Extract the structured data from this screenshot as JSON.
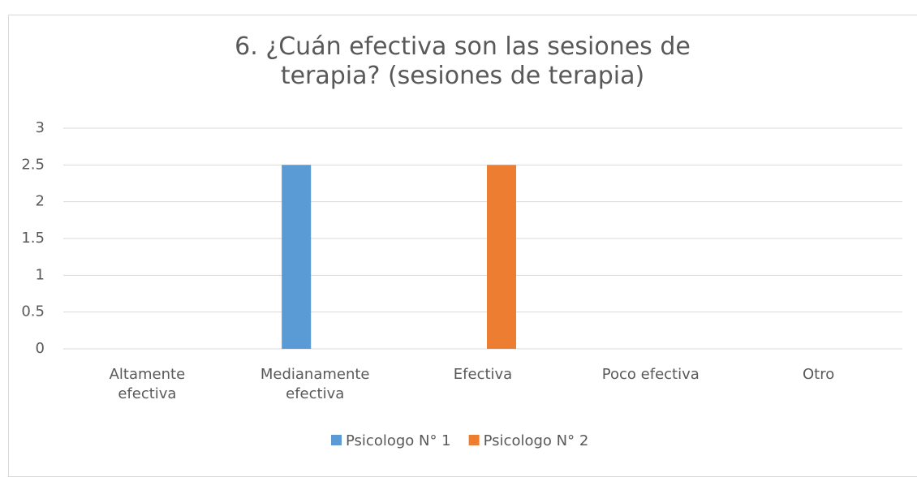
{
  "chart_data": {
    "type": "bar",
    "title": "6. ¿Cuán efectiva son las sesiones de terapia? (sesiones de terapia)",
    "categories": [
      "Altamente efectiva",
      "Medianamente efectiva",
      "Efectiva",
      "Poco efectiva",
      "Otro"
    ],
    "series": [
      {
        "name": "Psicologo N° 1",
        "color": "#5b9bd5",
        "values": [
          0,
          2.5,
          0,
          0,
          0
        ]
      },
      {
        "name": "Psicologo N° 2",
        "color": "#ed7d31",
        "values": [
          0,
          0,
          2.5,
          0,
          0
        ]
      }
    ],
    "ylim": [
      0,
      3
    ],
    "yticks": [
      0,
      0.5,
      1,
      1.5,
      2,
      2.5,
      3
    ],
    "grid": true,
    "legend": "bottom"
  }
}
